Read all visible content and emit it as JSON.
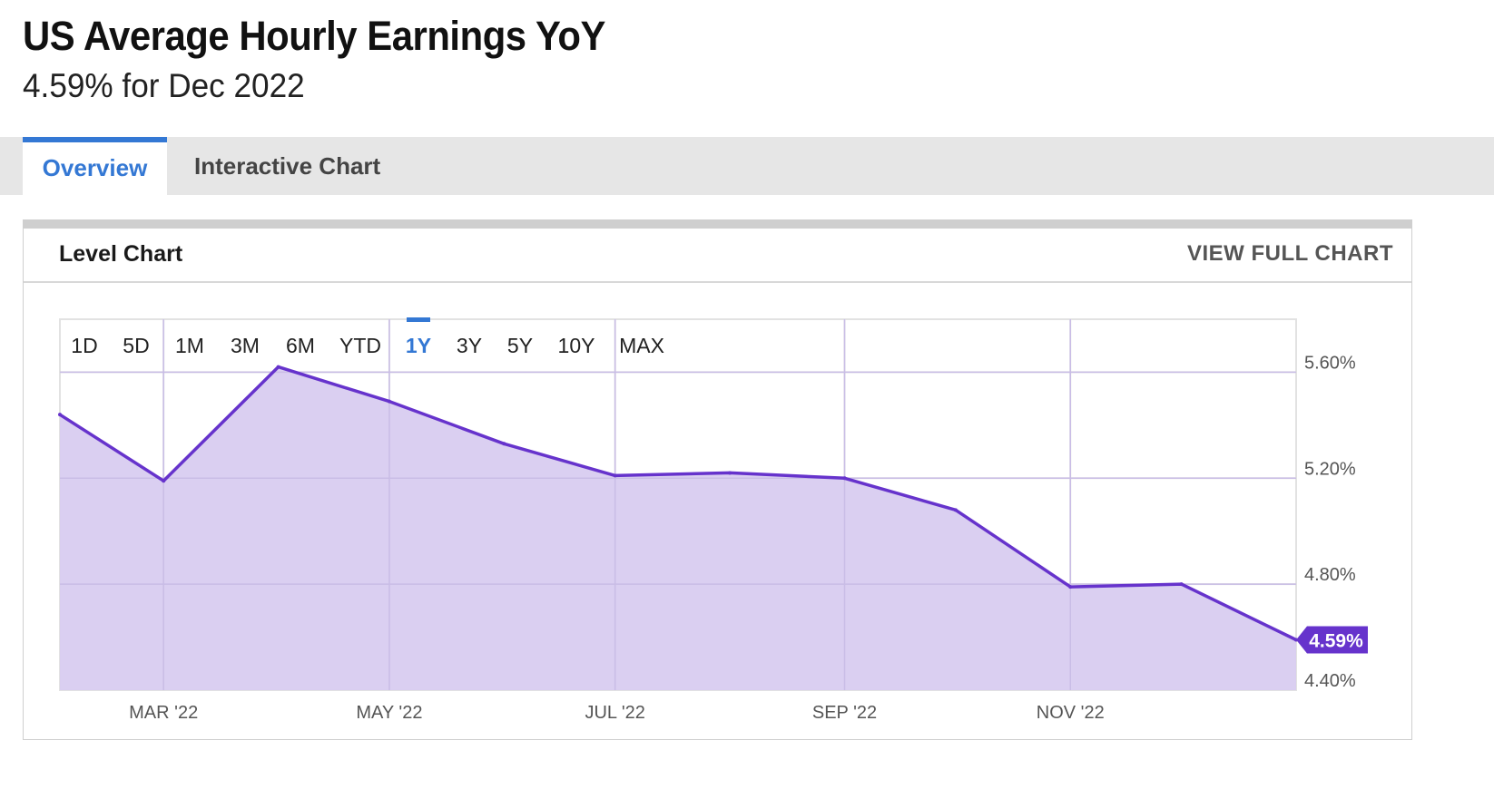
{
  "header": {
    "title": "US Average Hourly Earnings YoY",
    "subtitle": "4.59% for Dec 2022"
  },
  "tabs": [
    {
      "label": "Overview",
      "active": true
    },
    {
      "label": "Interactive Chart",
      "active": false
    }
  ],
  "panel": {
    "title": "Level Chart",
    "view_full_label": "VIEW FULL CHART"
  },
  "range_buttons": [
    {
      "label": "1D",
      "active": false
    },
    {
      "label": "5D",
      "active": false
    },
    {
      "label": "1M",
      "active": false
    },
    {
      "label": "3M",
      "active": false
    },
    {
      "label": "6M",
      "active": false
    },
    {
      "label": "YTD",
      "active": false
    },
    {
      "label": "1Y",
      "active": true
    },
    {
      "label": "3Y",
      "active": false
    },
    {
      "label": "5Y",
      "active": false
    },
    {
      "label": "10Y",
      "active": false
    },
    {
      "label": "MAX",
      "active": false
    }
  ],
  "colors": {
    "accent": "#3478d4",
    "line": "#6633cc",
    "fill": "#d8ccf0",
    "badge": "#6633cc"
  },
  "chart_data": {
    "type": "area",
    "x": [
      "2022-01-31",
      "2022-02-28",
      "2022-03-31",
      "2022-04-30",
      "2022-05-31",
      "2022-06-30",
      "2022-07-31",
      "2022-08-31",
      "2022-09-30",
      "2022-10-31",
      "2022-11-30",
      "2022-12-31"
    ],
    "series": [
      {
        "values": [
          5.44,
          5.19,
          5.62,
          5.49,
          5.33,
          5.21,
          5.22,
          5.2,
          5.08,
          4.79,
          4.8,
          4.59
        ]
      }
    ],
    "x_ticks": [
      {
        "date": "2022-02-28",
        "label": "MAR '22"
      },
      {
        "date": "2022-04-30",
        "label": "MAY '22"
      },
      {
        "date": "2022-06-30",
        "label": "JUL '22"
      },
      {
        "date": "2022-08-31",
        "label": "SEP '22"
      },
      {
        "date": "2022-10-31",
        "label": "NOV '22"
      }
    ],
    "y_ticks": [
      {
        "value": 5.6,
        "label": "5.60%"
      },
      {
        "value": 5.2,
        "label": "5.20%"
      },
      {
        "value": 4.8,
        "label": "4.80%"
      },
      {
        "value": 4.4,
        "label": "4.40%"
      }
    ],
    "ylim": [
      4.4,
      5.8
    ],
    "xlim": [
      "2022-01-31",
      "2022-12-31"
    ],
    "last_value_label": "4.59%",
    "grid": true,
    "y_axis_position": "right"
  }
}
